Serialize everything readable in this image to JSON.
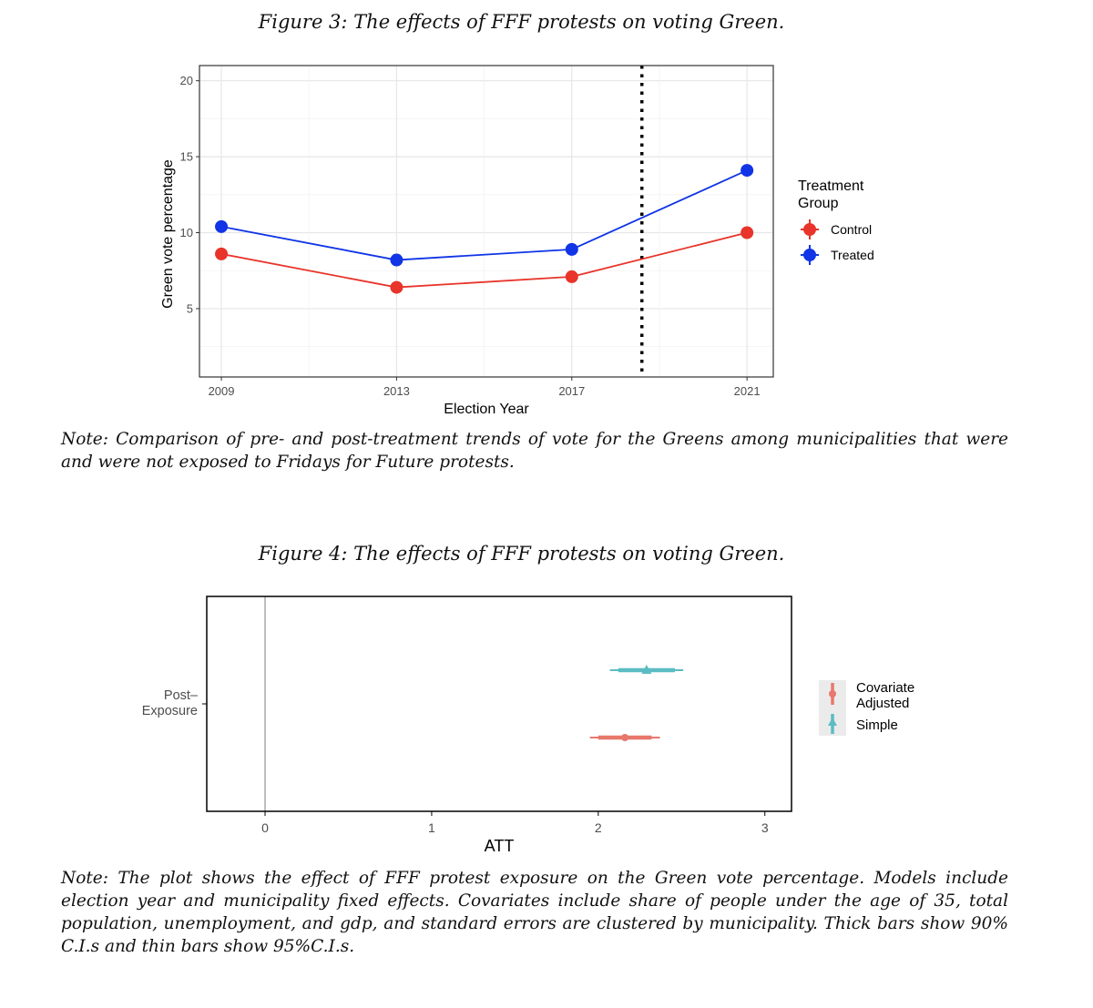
{
  "figure3": {
    "title": "Figure 3: The effects of FFF protests on voting Green.",
    "note": "Note: Comparison of pre- and post-treatment trends of vote for the Greens among municipalities that were and were not exposed to Fridays for Future protests."
  },
  "figure4": {
    "title": "Figure 4: The effects of FFF protests on voting Green.",
    "note": "Note: The plot shows the effect of FFF protest exposure on the Green vote percentage. Models include election year and municipality fixed effects. Covariates include share of people under the age of 35, total population, unemployment, and gdp, and standard errors are clustered by municipality. Thick bars show 90% C.I.s and thin bars show 95%C.I.s."
  },
  "chart_data": [
    {
      "type": "line",
      "xlabel": "Election Year",
      "ylabel": "Green vote percentage",
      "x": [
        2009,
        2013,
        2017,
        2021
      ],
      "x_ticks": [
        "2009",
        "2013",
        "2017",
        "2021"
      ],
      "xlim": [
        2008.5,
        2021.6
      ],
      "ylim": [
        0.5,
        21
      ],
      "y_ticks": [
        "5",
        "10",
        "15",
        "20"
      ],
      "y_tick_values": [
        5,
        10,
        15,
        20
      ],
      "treatment_line_x": 2018.6,
      "grid": true,
      "legend_title": [
        "Treatment",
        "Group"
      ],
      "legend_position": "right",
      "series": [
        {
          "name": "Control",
          "color": "#e8342a",
          "values": [
            8.6,
            6.4,
            7.1,
            10.0
          ]
        },
        {
          "name": "Treated",
          "color": "#1034e6",
          "values": [
            10.4,
            8.2,
            8.9,
            14.1
          ]
        }
      ]
    },
    {
      "type": "scatter",
      "xlabel": "ATT",
      "ylabel": "",
      "y_category": "Post–\nExposure",
      "y_category_lines": [
        "Post–",
        "Exposure"
      ],
      "xlim": [
        -0.35,
        3.16
      ],
      "x_ticks": [
        "0",
        "1",
        "2",
        "3"
      ],
      "x_tick_values": [
        0,
        1,
        2,
        3
      ],
      "zero_line": 0,
      "legend_position": "right",
      "series": [
        {
          "name": "Simple",
          "color": "#5bbcc3",
          "marker": "triangle",
          "estimate": 2.29,
          "ci90": [
            2.12,
            2.46
          ],
          "ci95": [
            2.07,
            2.51
          ]
        },
        {
          "name": "Covariate\nAdjusted",
          "label_lines": [
            "Covariate",
            "Adjusted"
          ],
          "color": "#e8776c",
          "marker": "circle",
          "estimate": 2.16,
          "ci90": [
            2.0,
            2.32
          ],
          "ci95": [
            1.95,
            2.37
          ]
        }
      ]
    }
  ]
}
